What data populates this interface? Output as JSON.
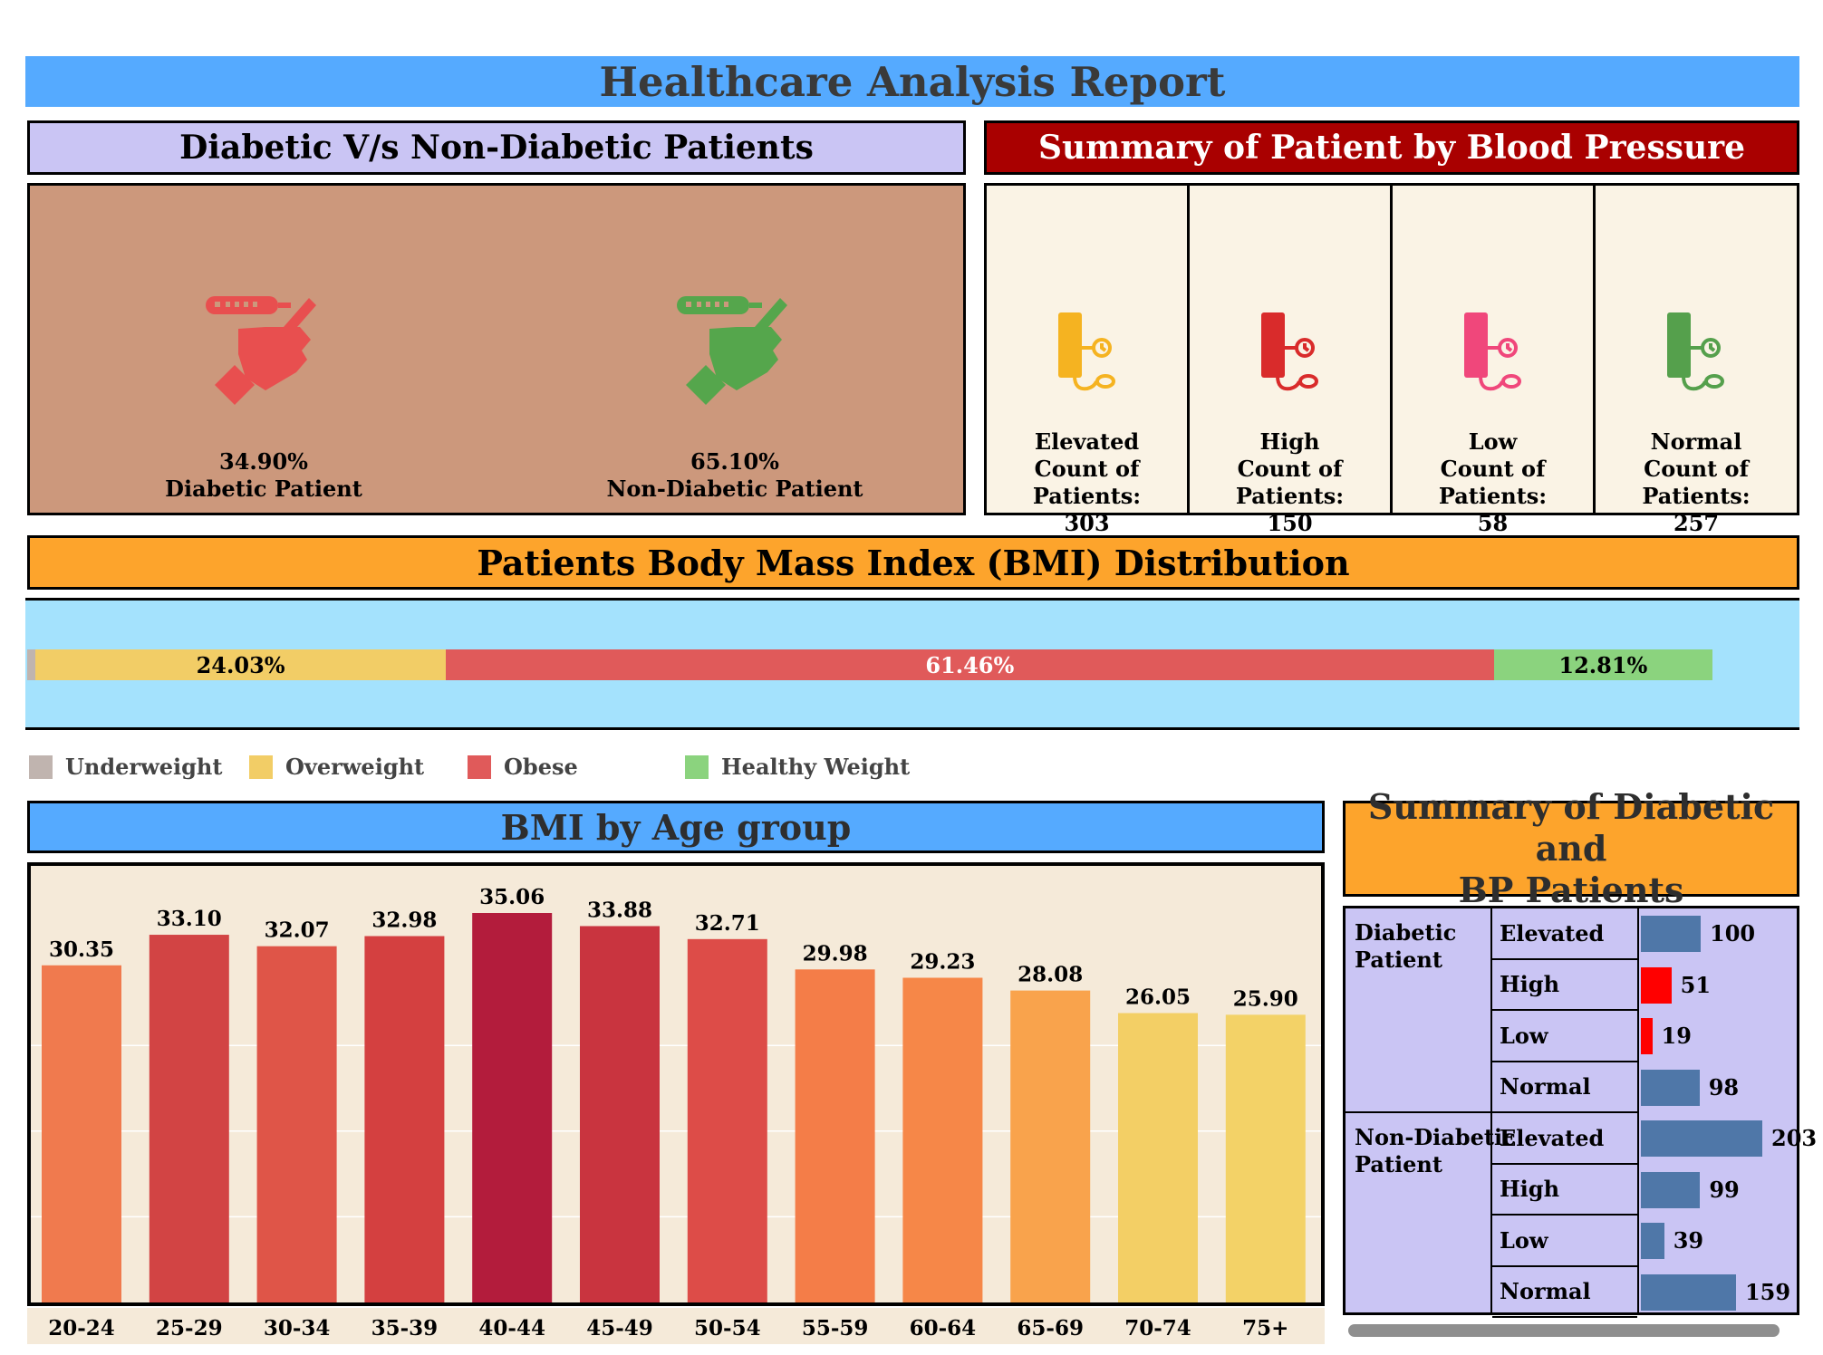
{
  "report_title": "Healthcare Analysis Report",
  "diabetic_section": {
    "title": "Diabetic V/s Non-Diabetic Patients",
    "items": [
      {
        "percent": "34.90%",
        "label": "Diabetic Patient",
        "icon": "glucose-meter-hand-icon",
        "color": "#e84f4f"
      },
      {
        "percent": "65.10%",
        "label": "Non-Diabetic Patient",
        "icon": "glucose-meter-hand-icon",
        "color": "#55a64c"
      }
    ]
  },
  "bp_section": {
    "title": "Summary of Patient by Blood Pressure",
    "count_label": "Count of Patients:",
    "cards": [
      {
        "category": "Elevated",
        "count": "303",
        "icon": "blood-pressure-monitor-icon",
        "color": "#f5b321"
      },
      {
        "category": "High",
        "count": "150",
        "icon": "blood-pressure-monitor-icon",
        "color": "#d92b2b"
      },
      {
        "category": "Low",
        "count": "58",
        "icon": "blood-pressure-monitor-icon",
        "color": "#f0477b"
      },
      {
        "category": "Normal",
        "count": "257",
        "icon": "blood-pressure-monitor-icon",
        "color": "#55a04c"
      }
    ]
  },
  "bmi_section": {
    "title": "Patients Body Mass Index (BMI) Distribution",
    "legend": [
      {
        "name": "Underweight",
        "color": "#c0b4af"
      },
      {
        "name": "Overweight",
        "color": "#f2cd66"
      },
      {
        "name": "Obese",
        "color": "#e05a5a"
      },
      {
        "name": "Healthy Weight",
        "color": "#8bd37e"
      }
    ]
  },
  "age_section": {
    "title": "BMI by Age group"
  },
  "summary_section": {
    "title_line1": "Summary of Diabetic and",
    "title_line2": "BP Patients",
    "groups": [
      {
        "label_line1": "Diabetic",
        "label_line2": "Patient"
      },
      {
        "label_line1": "Non-Diabetic",
        "label_line2": "Patient"
      }
    ],
    "bar_color": "#4f77a8",
    "highlight_color": "#ff0000"
  },
  "chart_data": [
    {
      "type": "bar",
      "orientation": "horizontal-stacked",
      "categories": [
        "Underweight",
        "Overweight",
        "Obese",
        "Healthy Weight"
      ],
      "values": [
        0.5,
        24.03,
        61.46,
        12.81
      ],
      "labels": [
        "",
        "24.03%",
        "61.46%",
        "12.81%"
      ],
      "colors": [
        "#c0b4af",
        "#f2cd66",
        "#e05a5a",
        "#8bd37e"
      ]
    },
    {
      "type": "bar",
      "categories": [
        "20-24",
        "25-29",
        "30-34",
        "35-39",
        "40-44",
        "45-49",
        "50-54",
        "55-59",
        "60-64",
        "65-69",
        "70-74",
        "75+"
      ],
      "values": [
        30.35,
        33.1,
        32.07,
        32.98,
        35.06,
        33.88,
        32.71,
        29.98,
        29.23,
        28.08,
        26.05,
        25.9
      ],
      "labels": [
        "30.35",
        "33.10",
        "32.07",
        "32.98",
        "35.06",
        "33.88",
        "32.71",
        "29.98",
        "29.23",
        "28.08",
        "26.05",
        "25.90"
      ],
      "colors": [
        "#f07a4e",
        "#d24444",
        "#df5548",
        "#d44040",
        "#b31c3c",
        "#c9343f",
        "#dd4c48",
        "#f47d48",
        "#f68748",
        "#f9a34c",
        "#f3cf65",
        "#f3d267"
      ],
      "ylim": [
        0,
        35.06
      ]
    },
    {
      "type": "bar",
      "orientation": "horizontal",
      "groups": [
        "Diabetic Patient",
        "Non-Diabetic Patient"
      ],
      "categories": [
        "Elevated",
        "High",
        "Low",
        "Normal",
        "Elevated",
        "High",
        "Low",
        "Normal"
      ],
      "values": [
        100,
        51,
        19,
        98,
        203,
        99,
        39,
        159
      ],
      "labels": [
        "100",
        "51",
        "19",
        "98",
        "203",
        "99",
        "39",
        "159"
      ],
      "xlim": [
        0,
        203
      ]
    }
  ]
}
